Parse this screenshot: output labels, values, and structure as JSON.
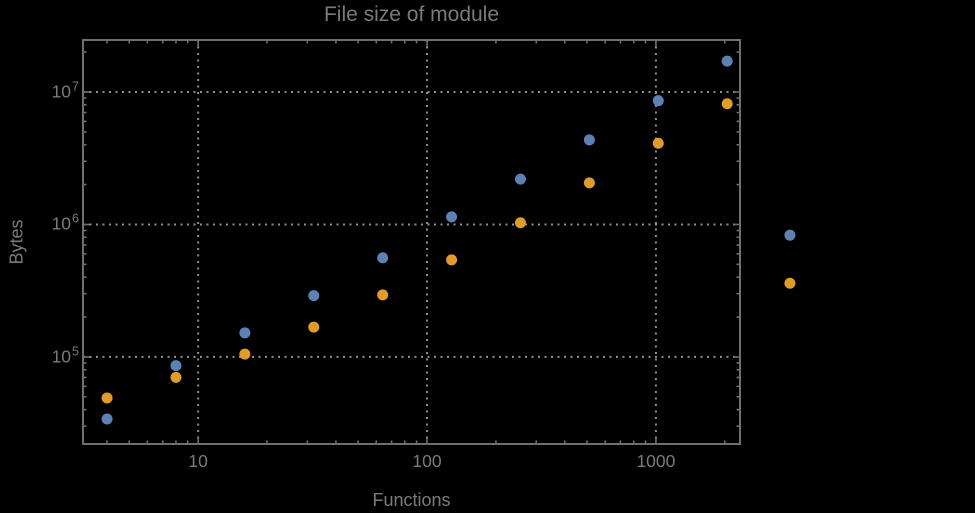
{
  "colors": {
    "background": "#000000",
    "frame": "#6f6f6f",
    "gridline": "#8f8f8f",
    "text": "#7a7a7a",
    "series_blue": "#5e81b5",
    "series_orange": "#e19c24"
  },
  "chart_data": {
    "type": "scatter",
    "title": "File size of module",
    "xlabel": "Functions",
    "ylabel": "Bytes",
    "x_scale": "log",
    "y_scale": "log",
    "xlim": [
      3.14,
      2330
    ],
    "ylim": [
      22000,
      24700000
    ],
    "grid": "dotted gray gridlines at major (power-of-10) ticks, all four frame edges ticked",
    "legend": "none",
    "marker": "filled circle",
    "note": "last pair of points lies beyond the right frame edge (outside plot range, unclipped)",
    "x_ticks": [
      {
        "value": 10,
        "label": "10"
      },
      {
        "value": 100,
        "label": "100"
      },
      {
        "value": 1000,
        "label": "1000"
      }
    ],
    "y_ticks": [
      {
        "value": 100000,
        "base": "10",
        "exp": "5"
      },
      {
        "value": 1000000,
        "base": "10",
        "exp": "6"
      },
      {
        "value": 10000000,
        "base": "10",
        "exp": "7"
      }
    ],
    "series": [
      {
        "name": "series-1-blue",
        "color": "#5e81b5",
        "points": [
          [
            4,
            34000
          ],
          [
            8,
            86000
          ],
          [
            16,
            152000
          ],
          [
            32,
            290000
          ],
          [
            64,
            560000
          ],
          [
            128,
            1140000
          ],
          [
            256,
            2200000
          ],
          [
            512,
            4350000
          ],
          [
            1024,
            8600000
          ],
          [
            2048,
            17100000
          ],
          [
            3850,
            830000
          ]
        ]
      },
      {
        "name": "series-2-orange",
        "color": "#e19c24",
        "points": [
          [
            4,
            49000
          ],
          [
            8,
            70000
          ],
          [
            16,
            105000
          ],
          [
            32,
            168000
          ],
          [
            64,
            294000
          ],
          [
            128,
            540000
          ],
          [
            256,
            1030000
          ],
          [
            512,
            2060000
          ],
          [
            1024,
            4100000
          ],
          [
            2048,
            8150000
          ],
          [
            3850,
            360000
          ]
        ]
      }
    ]
  }
}
